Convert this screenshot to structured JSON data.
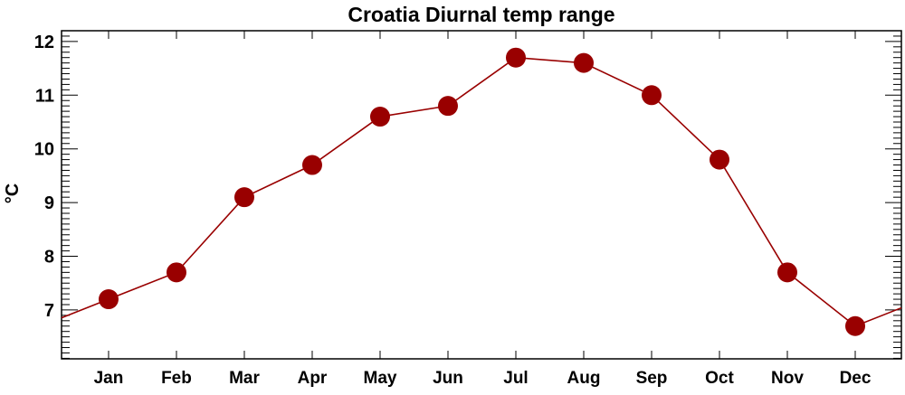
{
  "chart_data": {
    "type": "line",
    "title": "Croatia Diurnal temp range",
    "xlabel": "",
    "ylabel": "°C",
    "categories": [
      "Jan",
      "Feb",
      "Mar",
      "Apr",
      "May",
      "Jun",
      "Jul",
      "Aug",
      "Sep",
      "Oct",
      "Nov",
      "Dec"
    ],
    "series": [
      {
        "name": "Diurnal temp range",
        "values": [
          7.2,
          7.7,
          9.1,
          9.7,
          10.6,
          10.8,
          11.7,
          11.6,
          11.0,
          9.8,
          7.7,
          6.7
        ]
      }
    ],
    "ylim": [
      6.09,
      12.2
    ],
    "xlim": [
      0.307,
      12.68
    ],
    "yticks": [
      7,
      8,
      9,
      10,
      11,
      12
    ],
    "grid": false,
    "color": "#990000"
  }
}
